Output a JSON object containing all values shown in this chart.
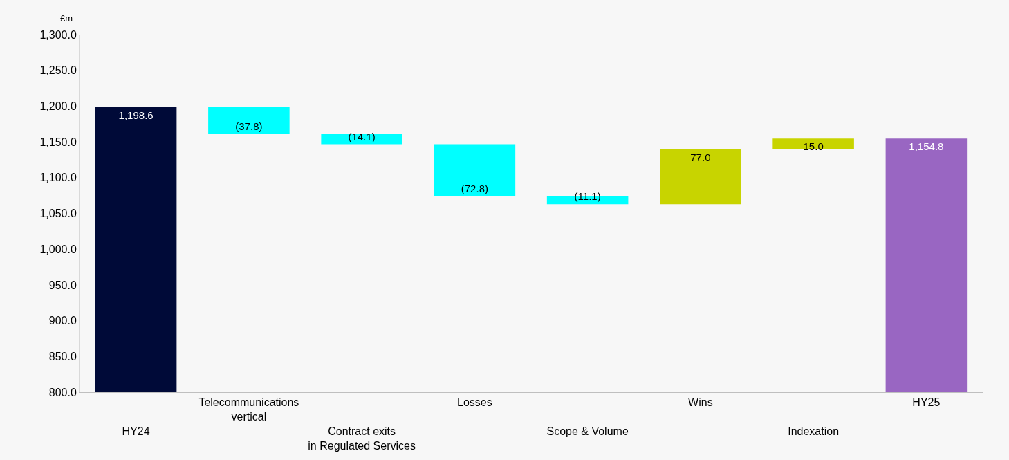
{
  "chart_data": {
    "type": "bar",
    "ylabel": "£m",
    "categories": [
      "HY24",
      "Telecommunications\nvertical",
      "Contract exits\nin Regulated Services",
      "Losses",
      "Scope & Volume",
      "Wins",
      "Indexation",
      "HY25"
    ],
    "values": [
      1198.6,
      -37.8,
      -14.1,
      -72.8,
      -11.1,
      77.0,
      15.0,
      1154.8
    ],
    "base": [
      null,
      1198.6,
      1160.8,
      1146.7,
      1073.9,
      1062.8,
      1139.8,
      null
    ],
    "colors": [
      "#000a38",
      "#00ffff",
      "#00ffff",
      "#00ffff",
      "#00ffff",
      "#c8d400",
      "#c8d400",
      "#9966c2"
    ],
    "value_labels": [
      "1,198.6",
      "(37.8)",
      "(14.1)",
      "(72.8)",
      "(11.1)",
      "77.0",
      "15.0",
      "1,154.8"
    ],
    "ylim": [
      800,
      1300
    ],
    "yticks": [
      {
        "value": 800,
        "label": "800.0"
      },
      {
        "value": 850,
        "label": "850.0"
      },
      {
        "value": 900,
        "label": "900.0"
      },
      {
        "value": 950,
        "label": "950.0"
      },
      {
        "value": 1000,
        "label": "1,000.0"
      },
      {
        "value": 1050,
        "label": "1,050.0"
      },
      {
        "value": 1100,
        "label": "1,100.0"
      },
      {
        "value": 1150,
        "label": "1,150.0"
      },
      {
        "value": 1200,
        "label": "1,200.0"
      },
      {
        "value": 1250,
        "label": "1,250.0"
      },
      {
        "value": 1300,
        "label": "1,300.0"
      }
    ],
    "grid": false
  }
}
